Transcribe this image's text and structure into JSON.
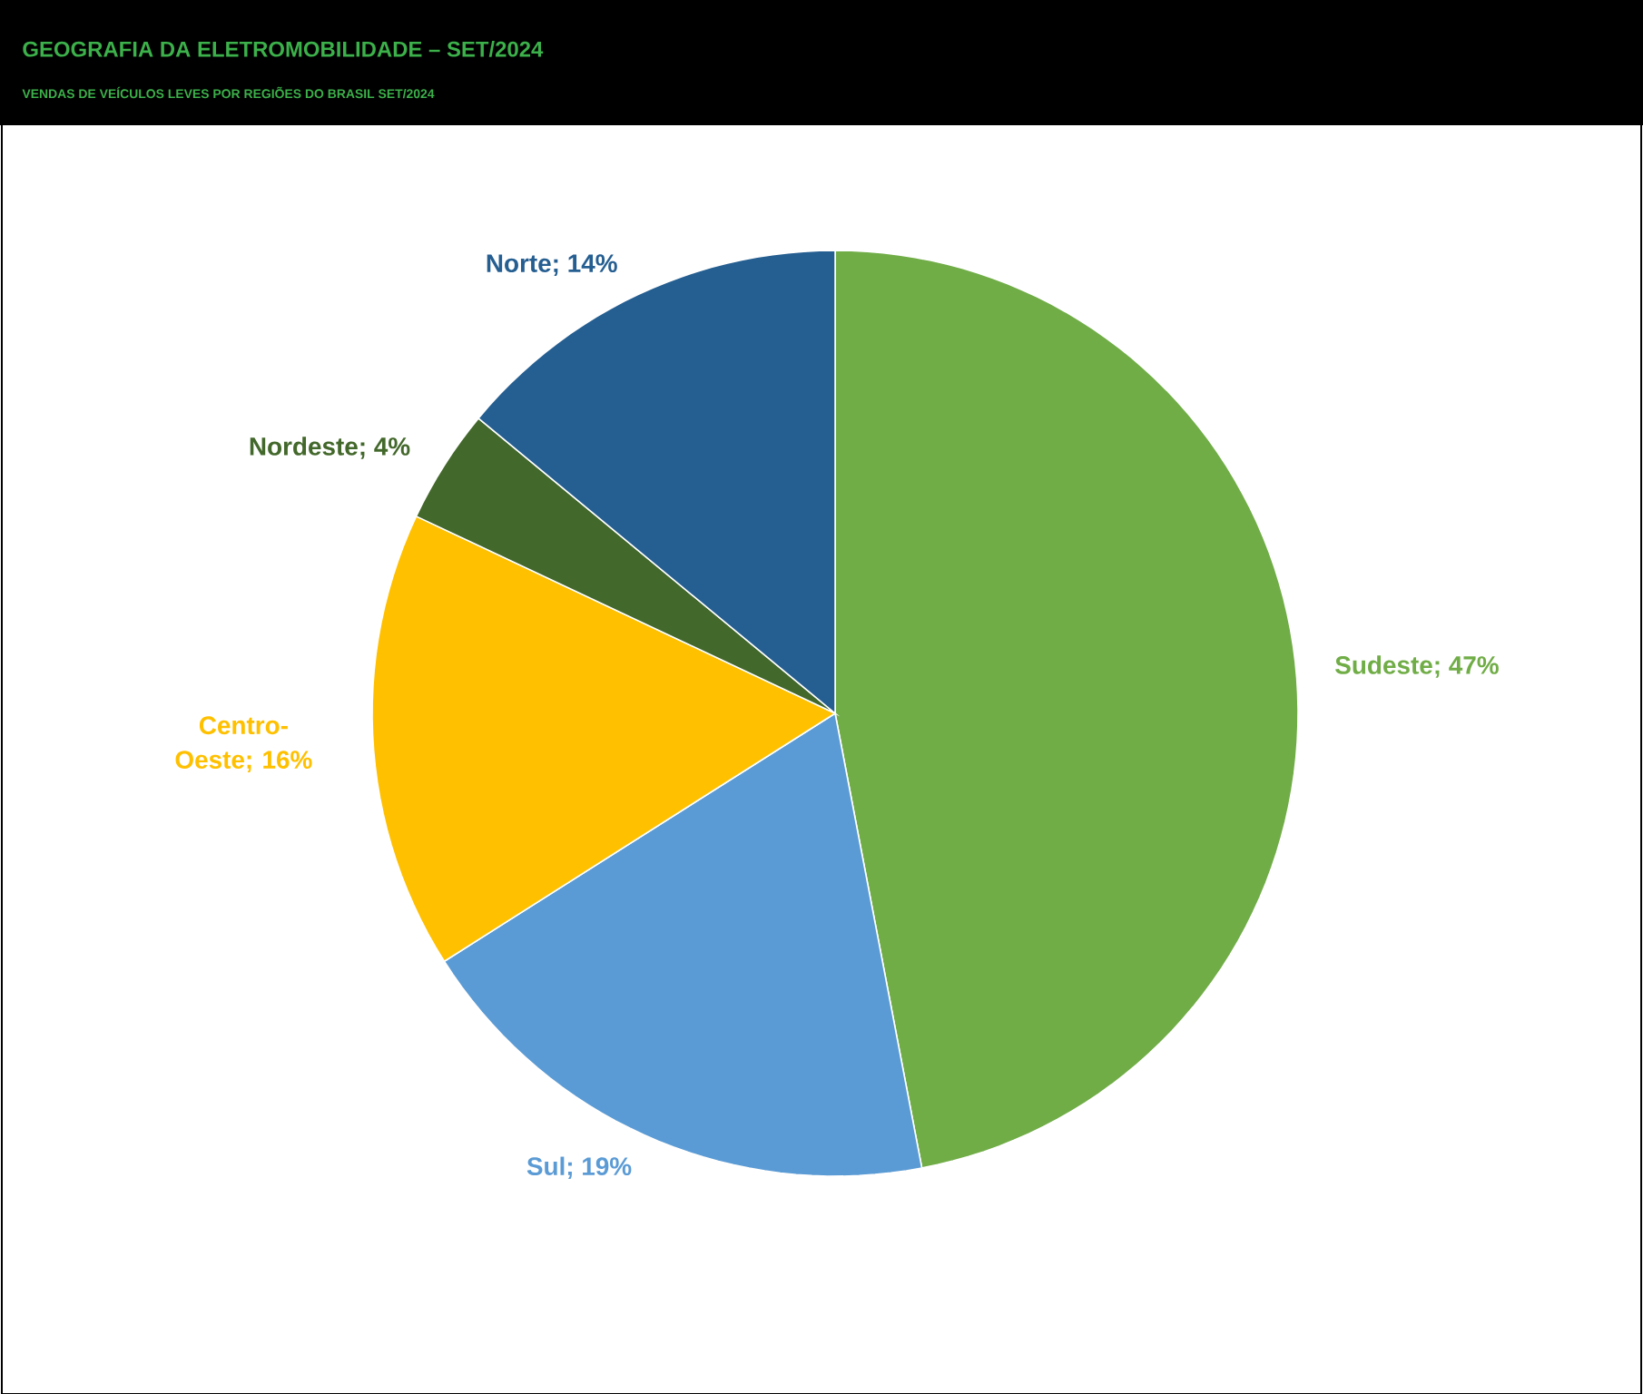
{
  "chart_data": {
    "type": "pie",
    "title": "GEOGRAFIA DA ELETROMOBILIDADE – SET/2024",
    "subtitle": "VENDAS DE VEÍCULOS LEVES POR REGIÕES DO BRASIL SET/2024",
    "categories": [
      "Sudeste",
      "Sul",
      "Centro-Oeste",
      "Nordeste",
      "Norte"
    ],
    "values": [
      47,
      19,
      16,
      4,
      14
    ],
    "value_labels": [
      "; 47%",
      "; 19%",
      "; 16%",
      "; 4%",
      "; 14%"
    ],
    "colors": [
      "#70ad47",
      "#5b9bd5",
      "#ffc000",
      "#43682b",
      "#255e91"
    ]
  }
}
